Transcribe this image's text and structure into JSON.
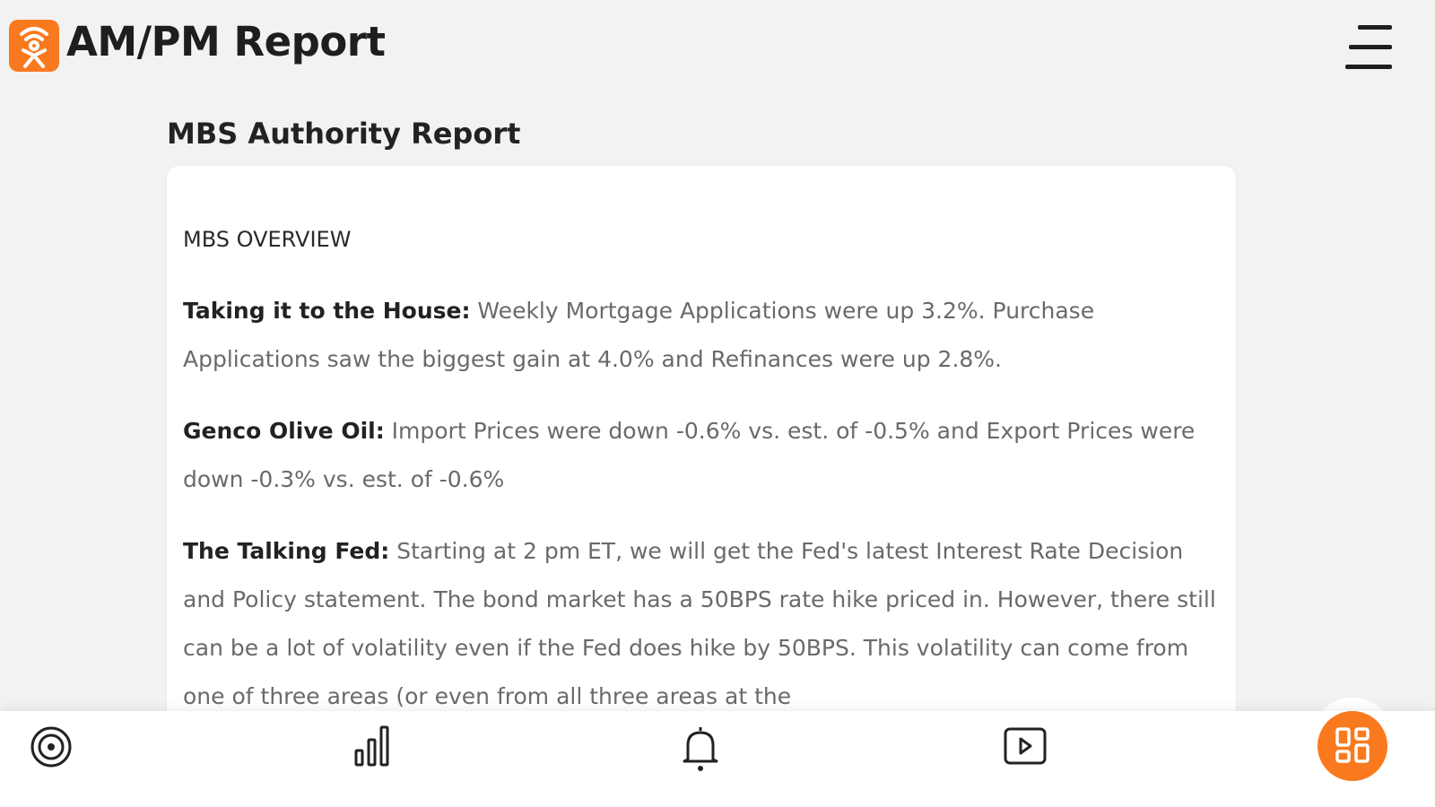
{
  "header": {
    "title": "AM/PM Report",
    "logo_icon": "podcast-person-icon",
    "menu_icon": "hamburger-menu-icon",
    "brand_color": "#f97a1e"
  },
  "section_title": "MBS Authority Report",
  "card": {
    "heading": "MBS OVERVIEW",
    "paragraphs": [
      {
        "label": "Taking it to the House:",
        "text": " Weekly Mortgage Applications were up 3.2%. Purchase Applications saw the biggest gain at 4.0% and Refinances were up 2.8%."
      },
      {
        "label": "Genco Olive Oil:",
        "text": " Import Prices were down -0.6% vs. est. of -0.5% and Export Prices were down -0.3% vs. est. of -0.6%"
      },
      {
        "label": "The Talking Fed:",
        "text": " Starting at 2 pm ET, we will get the Fed's latest Interest Rate Decision and Policy statement. The bond market has a 50BPS rate hike priced in. However, there still can be a lot of volatility even if the Fed does hike by 50BPS. This volatility can come from one of three areas (or even from all three areas at the"
      }
    ]
  },
  "bottom_nav": {
    "items": [
      "target-icon",
      "bar-chart-icon",
      "bell-icon",
      "play-video-icon",
      "grid-icon"
    ]
  }
}
